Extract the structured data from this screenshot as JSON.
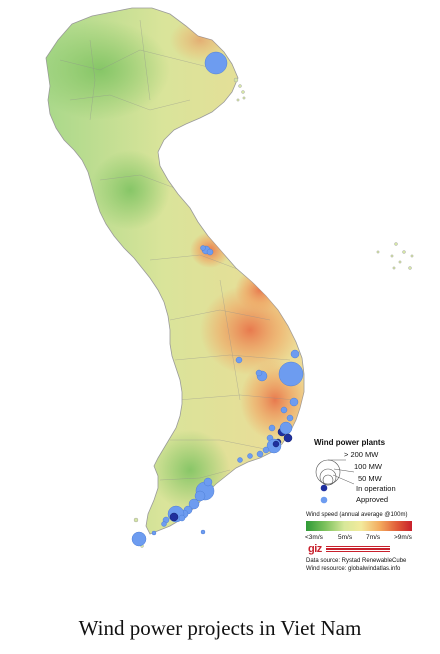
{
  "caption": "Wind power projects in Viet Nam",
  "legend": {
    "title": "Wind power plants",
    "sizes": [
      "> 200 MW",
      "100 MW",
      "50 MW"
    ],
    "statuses": [
      {
        "label": "In operation",
        "color": "#1f2f9e"
      },
      {
        "label": "Approved",
        "color": "#6d9cf0"
      }
    ],
    "windspeed_title": "Wind speed (annual average @100m)",
    "windspeed_ticks": [
      "<3m/s",
      "5m/s",
      "7m/s",
      ">9m/s"
    ],
    "logo_text": "giz",
    "data_source": "Data source: Rystad RenewableCube",
    "wind_resource": "Wind resource: globalwindatlas.info"
  },
  "colors": {
    "land_low": "#a9d88a",
    "land_mid": "#eedb96",
    "land_high": "#e8744a",
    "in_operation": "#1f2f9e",
    "approved": "#6d9cf0"
  }
}
